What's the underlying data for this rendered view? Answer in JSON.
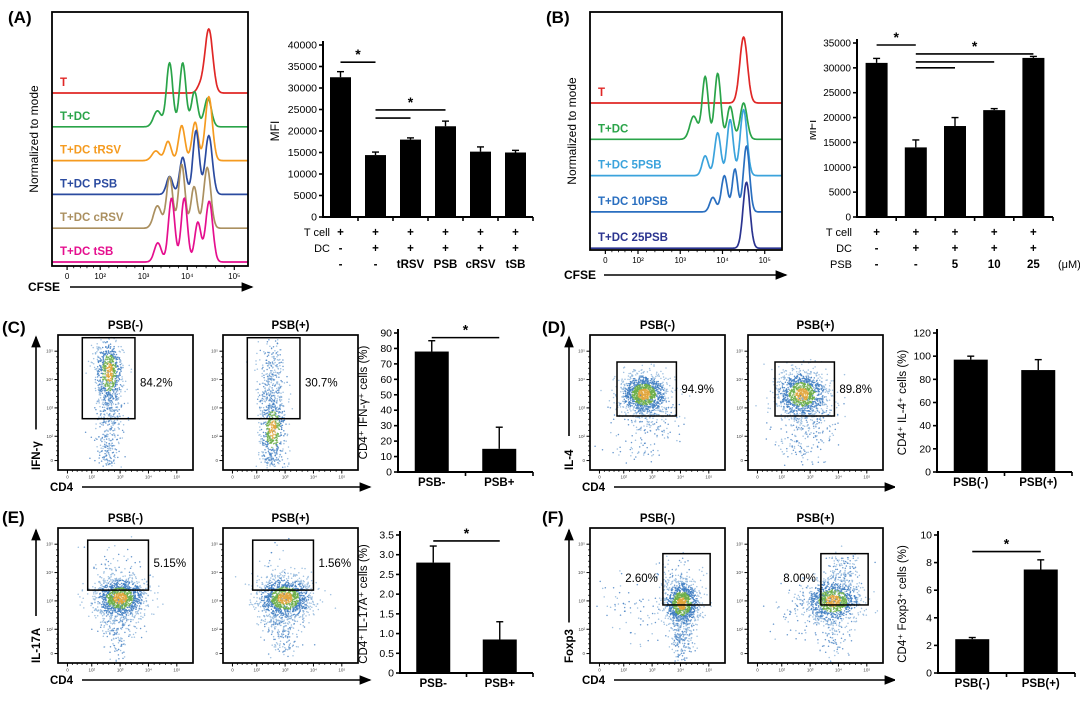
{
  "chart_data": [
    {
      "label": "(A)",
      "flow_histogram": {
        "type": "area",
        "ylabel": "Normalized to mode",
        "xlabel": "CFSE",
        "x_ticks": [
          "0",
          "10²",
          "10³",
          "10⁴",
          "10⁵"
        ],
        "traces": [
          {
            "label": "T",
            "color": "#e02726",
            "peaks": [
              [
                0.8,
                0.02,
                1.0
              ],
              [
                0.755,
                0.016,
                0.1
              ]
            ]
          },
          {
            "label": "T+DC",
            "color": "#2aa449",
            "peaks": [
              [
                0.538,
                0.02,
                0.25
              ],
              [
                0.6,
                0.016,
                1.0
              ],
              [
                0.667,
                0.016,
                1.0
              ],
              [
                0.727,
                0.016,
                0.55
              ],
              [
                0.795,
                0.018,
                0.45
              ]
            ]
          },
          {
            "label": "T+DC tRSV",
            "color": "#f59b20",
            "peaks": [
              [
                0.53,
                0.02,
                0.15
              ],
              [
                0.592,
                0.016,
                0.3
              ],
              [
                0.662,
                0.016,
                0.55
              ],
              [
                0.73,
                0.016,
                0.6
              ],
              [
                0.8,
                0.018,
                1.0
              ]
            ]
          },
          {
            "label": "T+DC PSB",
            "color": "#2b4ba0",
            "peaks": [
              [
                0.6,
                0.016,
                0.28
              ],
              [
                0.667,
                0.016,
                0.58
              ],
              [
                0.735,
                0.016,
                1.0
              ],
              [
                0.8,
                0.018,
                0.92
              ]
            ]
          },
          {
            "label": "T+DC cRSV",
            "color": "#ab9060",
            "peaks": [
              [
                0.538,
                0.02,
                0.35
              ],
              [
                0.6,
                0.016,
                0.8
              ],
              [
                0.662,
                0.016,
                1.0
              ],
              [
                0.725,
                0.016,
                0.65
              ],
              [
                0.792,
                0.018,
                0.95
              ]
            ]
          },
          {
            "label": "T+DC tSB",
            "color": "#e50f8e",
            "peaks": [
              [
                0.54,
                0.018,
                0.3
              ],
              [
                0.61,
                0.016,
                1.0
              ],
              [
                0.675,
                0.016,
                1.0
              ],
              [
                0.744,
                0.016,
                0.62
              ],
              [
                0.802,
                0.018,
                0.95
              ]
            ]
          }
        ]
      },
      "bar_chart": {
        "type": "bar",
        "ylabel": "MFI",
        "ylim": [
          0,
          40000
        ],
        "ytick_step": 5000,
        "values": [
          32500,
          14400,
          18000,
          21100,
          15200,
          15000
        ],
        "errors": [
          1300,
          700,
          400,
          1200,
          1100,
          500
        ],
        "sig": [
          {
            "a": 0,
            "b": 1,
            "y": 36000,
            "star": true
          },
          {
            "a": 1,
            "b": 2,
            "y": 23000
          },
          {
            "a": 1,
            "b": 3,
            "y": 24900,
            "star": true
          }
        ],
        "rows": [
          {
            "name": "T cell",
            "values": [
              "+",
              "+",
              "+",
              "+",
              "+",
              "+"
            ]
          },
          {
            "name": "DC",
            "values": [
              "-",
              "+",
              "+",
              "+",
              "+",
              "+"
            ]
          },
          {
            "name": "",
            "values": [
              "-",
              "-",
              "tRSV",
              "PSB",
              "cRSV",
              "tSB"
            ]
          }
        ]
      }
    },
    {
      "label": "(B)",
      "flow_histogram": {
        "type": "area",
        "ylabel": "Normalized to mode",
        "xlabel": "CFSE",
        "x_ticks": [
          "0",
          "10²",
          "10³",
          "10⁴",
          "10⁵"
        ],
        "traces": [
          {
            "label": "T",
            "color": "#e02726",
            "peaks": [
              [
                0.8,
                0.02,
                1.0
              ]
            ]
          },
          {
            "label": "T+DC",
            "color": "#2aa449",
            "peaks": [
              [
                0.54,
                0.02,
                0.35
              ],
              [
                0.6,
                0.016,
                0.95
              ],
              [
                0.665,
                0.016,
                1.0
              ],
              [
                0.73,
                0.016,
                0.5
              ],
              [
                0.8,
                0.018,
                0.55
              ]
            ]
          },
          {
            "label": "T+DC 5PSB",
            "color": "#3ba3dc",
            "peaks": [
              [
                0.6,
                0.016,
                0.3
              ],
              [
                0.665,
                0.016,
                0.65
              ],
              [
                0.73,
                0.016,
                0.85
              ],
              [
                0.8,
                0.018,
                1.0
              ]
            ]
          },
          {
            "label": "T+DC 10PSB",
            "color": "#2a6fc0",
            "peaks": [
              [
                0.64,
                0.016,
                0.22
              ],
              [
                0.7,
                0.016,
                0.55
              ],
              [
                0.755,
                0.014,
                0.65
              ],
              [
                0.815,
                0.016,
                1.0
              ]
            ]
          },
          {
            "label": "T+DC 25PSB",
            "color": "#2b3490",
            "peaks": [
              [
                0.815,
                0.018,
                1.0
              ]
            ]
          }
        ]
      },
      "bar_chart": {
        "type": "bar",
        "ylabel": "MFI",
        "ylim": [
          0,
          35000
        ],
        "ytick_step": 5000,
        "values": [
          31000,
          14000,
          18300,
          21500,
          32000
        ],
        "errors": [
          900,
          1500,
          1700,
          300,
          300
        ],
        "sig": [
          {
            "a": 0,
            "b": 1,
            "y": 34600,
            "star": true
          },
          {
            "a": 1,
            "b": 2,
            "y": 30000
          },
          {
            "a": 1,
            "b": 3,
            "y": 31200
          },
          {
            "a": 1,
            "b": 4,
            "y": 32800,
            "star": true
          }
        ],
        "rows": [
          {
            "name": "T cell",
            "values": [
              "+",
              "+",
              "+",
              "+",
              "+"
            ]
          },
          {
            "name": "DC",
            "values": [
              "-",
              "+",
              "+",
              "+",
              "+"
            ]
          },
          {
            "name": "PSB",
            "values": [
              "-",
              "-",
              "5",
              "10",
              "25"
            ]
          }
        ],
        "unit": "(μM)"
      }
    },
    {
      "label": "(C)",
      "dot_plots": {
        "type": "scatter",
        "ylabel": "IFN-γ",
        "xlabel": "CD4",
        "tick_labels": [
          "0",
          "10²",
          "10³",
          "10⁴",
          "10⁵"
        ],
        "plots": [
          {
            "title": "PSB(-)",
            "pct": "84.2%",
            "pct_side": "right",
            "pct_y": 0.38,
            "seed": 101,
            "gate": [
              0.18,
              0.02,
              0.57,
              0.62
            ],
            "clusters": [
              {
                "cx": 0.38,
                "cy": 0.28,
                "sx": 0.05,
                "sy": 0.13,
                "n": 650
              },
              {
                "cx": 0.38,
                "cy": 0.6,
                "sx": 0.05,
                "sy": 0.12,
                "n": 250
              },
              {
                "cx": 0.37,
                "cy": 0.85,
                "sx": 0.05,
                "sy": 0.08,
                "n": 120
              }
            ]
          },
          {
            "title": "PSB(+)",
            "pct": "30.7%",
            "pct_side": "right",
            "pct_y": 0.38,
            "seed": 102,
            "gate": [
              0.18,
              0.02,
              0.57,
              0.62
            ],
            "clusters": [
              {
                "cx": 0.36,
                "cy": 0.35,
                "sx": 0.05,
                "sy": 0.16,
                "n": 350
              },
              {
                "cx": 0.37,
                "cy": 0.7,
                "sx": 0.05,
                "sy": 0.13,
                "n": 450
              },
              {
                "cx": 0.37,
                "cy": 0.92,
                "sx": 0.05,
                "sy": 0.05,
                "n": 80
              }
            ]
          }
        ]
      },
      "bar_chart": {
        "type": "bar",
        "ylabel": "CD4⁺ IFN-γ⁺ cells (%)",
        "ylim": [
          0,
          90
        ],
        "ytick_step": 10,
        "categories": [
          "PSB-",
          "PSB+"
        ],
        "values": [
          78,
          15
        ],
        "errors": [
          7,
          14
        ],
        "sig": [
          {
            "a": 0,
            "b": 1,
            "y": 87,
            "star": true
          }
        ]
      }
    },
    {
      "label": "(D)",
      "dot_plots": {
        "type": "scatter",
        "ylabel": "IL-4",
        "xlabel": "CD4",
        "tick_labels": [
          "0",
          "10²",
          "10³",
          "10⁴",
          "10⁵"
        ],
        "plots": [
          {
            "title": "PSB(-)",
            "pct": "94.9%",
            "pct_side": "right",
            "pct_y": 0.43,
            "seed": 201,
            "gate": [
              0.2,
              0.2,
              0.64,
              0.6
            ],
            "clusters": [
              {
                "cx": 0.4,
                "cy": 0.44,
                "sx": 0.085,
                "sy": 0.075,
                "n": 1200
              },
              {
                "cx": 0.44,
                "cy": 0.62,
                "sx": 0.11,
                "sy": 0.1,
                "n": 180
              },
              {
                "cx": 0.35,
                "cy": 0.85,
                "sx": 0.1,
                "sy": 0.06,
                "n": 40
              }
            ]
          },
          {
            "title": "PSB(+)",
            "pct": "89.8%",
            "pct_side": "right",
            "pct_y": 0.43,
            "seed": 202,
            "gate": [
              0.2,
              0.2,
              0.64,
              0.6
            ],
            "clusters": [
              {
                "cx": 0.4,
                "cy": 0.44,
                "sx": 0.095,
                "sy": 0.085,
                "n": 1100
              },
              {
                "cx": 0.46,
                "cy": 0.64,
                "sx": 0.12,
                "sy": 0.11,
                "n": 220
              },
              {
                "cx": 0.38,
                "cy": 0.85,
                "sx": 0.1,
                "sy": 0.07,
                "n": 60
              }
            ]
          }
        ]
      },
      "bar_chart": {
        "type": "bar",
        "ylabel": "CD4⁺ IL-4⁺ cells (%)",
        "ylim": [
          0,
          120
        ],
        "ytick_step": 20,
        "categories": [
          "PSB(-)",
          "PSB(+)"
        ],
        "values": [
          97,
          88
        ],
        "errors": [
          3,
          9
        ],
        "sig": []
      }
    },
    {
      "label": "(E)",
      "dot_plots": {
        "type": "scatter",
        "ylabel": "IL-17A",
        "xlabel": "CD4",
        "tick_labels": [
          "0",
          "10²",
          "10³",
          "10⁴",
          "10⁵"
        ],
        "plots": [
          {
            "title": "PSB(-)",
            "pct": "5.15%",
            "pct_side": "right",
            "pct_y": 0.29,
            "seed": 301,
            "gate": [
              0.22,
              0.09,
              0.67,
              0.46
            ],
            "clusters": [
              {
                "cx": 0.46,
                "cy": 0.52,
                "sx": 0.095,
                "sy": 0.075,
                "n": 1250
              },
              {
                "cx": 0.43,
                "cy": 0.7,
                "sx": 0.08,
                "sy": 0.09,
                "n": 150
              },
              {
                "cx": 0.42,
                "cy": 0.28,
                "sx": 0.1,
                "sy": 0.08,
                "n": 55
              },
              {
                "cx": 0.46,
                "cy": 0.86,
                "sx": 0.06,
                "sy": 0.06,
                "n": 40
              }
            ]
          },
          {
            "title": "PSB(+)",
            "pct": "1.56%",
            "pct_side": "right",
            "pct_y": 0.29,
            "seed": 302,
            "gate": [
              0.22,
              0.09,
              0.67,
              0.46
            ],
            "clusters": [
              {
                "cx": 0.46,
                "cy": 0.52,
                "sx": 0.1,
                "sy": 0.08,
                "n": 1250
              },
              {
                "cx": 0.43,
                "cy": 0.72,
                "sx": 0.08,
                "sy": 0.09,
                "n": 160
              },
              {
                "cx": 0.42,
                "cy": 0.28,
                "sx": 0.1,
                "sy": 0.08,
                "n": 18
              },
              {
                "cx": 0.46,
                "cy": 0.86,
                "sx": 0.06,
                "sy": 0.06,
                "n": 40
              }
            ]
          }
        ]
      },
      "bar_chart": {
        "type": "bar",
        "ylabel": "CD4⁺ IL-17A⁺ cells (%)",
        "ylim": [
          0,
          3.5
        ],
        "ytick_step": 0.5,
        "categories": [
          "PSB-",
          "PSB+"
        ],
        "values": [
          2.8,
          0.85
        ],
        "errors": [
          0.42,
          0.45
        ],
        "sig": [
          {
            "a": 0,
            "b": 1,
            "y": 3.35,
            "star": true
          }
        ]
      }
    },
    {
      "label": "(F)",
      "dot_plots": {
        "type": "scatter",
        "ylabel": "Foxp3",
        "xlabel": "CD4",
        "tick_labels": [
          "0",
          "10²",
          "10³",
          "10⁴",
          "10⁵"
        ],
        "plots": [
          {
            "title": "PSB(-)",
            "pct": "2.60%",
            "pct_side": "left",
            "pct_y": 0.4,
            "seed": 401,
            "gate": [
              0.54,
              0.19,
              0.89,
              0.57
            ],
            "clusters": [
              {
                "cx": 0.68,
                "cy": 0.56,
                "sx": 0.065,
                "sy": 0.085,
                "n": 1150
              },
              {
                "cx": 0.68,
                "cy": 0.82,
                "sx": 0.045,
                "sy": 0.09,
                "n": 220
              },
              {
                "cx": 0.62,
                "cy": 0.33,
                "sx": 0.08,
                "sy": 0.07,
                "n": 45
              },
              {
                "cx": 0.33,
                "cy": 0.62,
                "sx": 0.13,
                "sy": 0.12,
                "n": 70
              }
            ]
          },
          {
            "title": "PSB(+)",
            "pct": "8.00%",
            "pct_side": "left",
            "pct_y": 0.4,
            "seed": 402,
            "gate": [
              0.54,
              0.19,
              0.89,
              0.57
            ],
            "clusters": [
              {
                "cx": 0.63,
                "cy": 0.54,
                "sx": 0.1,
                "sy": 0.08,
                "n": 1000
              },
              {
                "cx": 0.7,
                "cy": 0.33,
                "sx": 0.08,
                "sy": 0.07,
                "n": 150
              },
              {
                "cx": 0.45,
                "cy": 0.62,
                "sx": 0.13,
                "sy": 0.1,
                "n": 120
              },
              {
                "cx": 0.65,
                "cy": 0.82,
                "sx": 0.06,
                "sy": 0.08,
                "n": 80
              }
            ]
          }
        ]
      },
      "bar_chart": {
        "type": "bar",
        "ylabel": "CD4⁺ Foxp3⁺ cells (%)",
        "ylim": [
          0,
          10
        ],
        "ytick_step": 2,
        "categories": [
          "PSB(-)",
          "PSB(+)"
        ],
        "values": [
          2.45,
          7.5
        ],
        "errors": [
          0.12,
          0.7
        ],
        "sig": [
          {
            "a": 0,
            "b": 1,
            "y": 8.8,
            "star": true
          }
        ]
      }
    }
  ]
}
